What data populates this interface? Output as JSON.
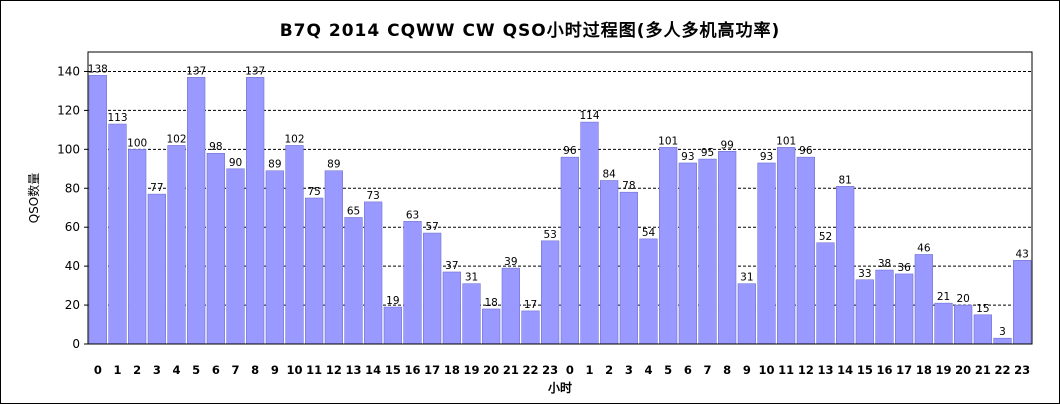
{
  "colors": {
    "bar": "#9999ff",
    "bar_stroke": "#6666cc",
    "grid": "#000000",
    "background": "#ffffff"
  },
  "chart_data": {
    "type": "bar",
    "title": "B7Q 2014 CQWW CW QSO小时过程图(多人多机高功率)",
    "xlabel": "小时",
    "ylabel": "QSO数量",
    "ylim": [
      0,
      150
    ],
    "yticks": [
      0,
      20,
      40,
      60,
      80,
      100,
      120,
      140
    ],
    "grid": "horizontal dashed",
    "categories": [
      "0",
      "1",
      "2",
      "3",
      "4",
      "5",
      "6",
      "7",
      "8",
      "9",
      "10",
      "11",
      "12",
      "13",
      "14",
      "15",
      "16",
      "17",
      "18",
      "19",
      "20",
      "21",
      "22",
      "23",
      "0",
      "1",
      "2",
      "3",
      "4",
      "5",
      "6",
      "7",
      "8",
      "9",
      "10",
      "11",
      "12",
      "13",
      "14",
      "15",
      "16",
      "17",
      "18",
      "19",
      "20",
      "21",
      "22",
      "23"
    ],
    "values": [
      138,
      113,
      100,
      77,
      102,
      137,
      98,
      90,
      137,
      89,
      102,
      75,
      89,
      65,
      73,
      19,
      63,
      57,
      37,
      31,
      18,
      39,
      17,
      53,
      96,
      114,
      84,
      78,
      54,
      101,
      93,
      95,
      99,
      31,
      93,
      101,
      96,
      52,
      81,
      33,
      38,
      36,
      46,
      21,
      20,
      15,
      3,
      43
    ]
  }
}
